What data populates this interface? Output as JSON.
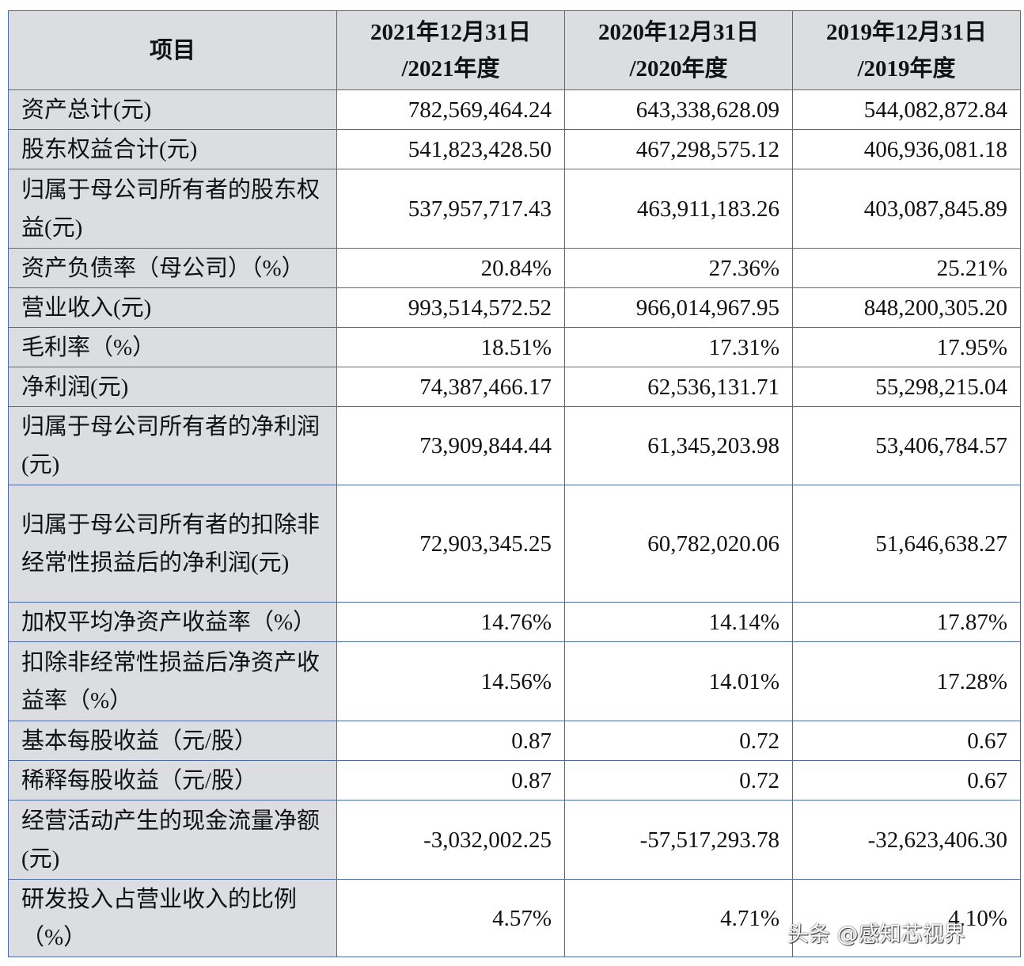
{
  "table": {
    "headers": [
      "项目",
      "2021年12月31日\n/2021年度",
      "2020年12月31日\n/2020年度",
      "2019年12月31日\n/2019年度"
    ],
    "rows": [
      {
        "label": "资产总计(元)",
        "values": [
          "782,569,464.24",
          "643,338,628.09",
          "544,082,872.84"
        ]
      },
      {
        "label": "股东权益合计(元)",
        "values": [
          "541,823,428.50",
          "467,298,575.12",
          "406,936,081.18"
        ]
      },
      {
        "label": "归属于母公司所有者的股东权益(元)",
        "values": [
          "537,957,717.43",
          "463,911,183.26",
          "403,087,845.89"
        ]
      },
      {
        "label": "资产负债率（母公司）（%）",
        "values": [
          "20.84%",
          "27.36%",
          "25.21%"
        ]
      },
      {
        "label": "营业收入(元)",
        "values": [
          "993,514,572.52",
          "966,014,967.95",
          "848,200,305.20"
        ]
      },
      {
        "label": "毛利率（%）",
        "values": [
          "18.51%",
          "17.31%",
          "17.95%"
        ]
      },
      {
        "label": "净利润(元)",
        "values": [
          "74,387,466.17",
          "62,536,131.71",
          "55,298,215.04"
        ]
      },
      {
        "label": "归属于母公司所有者的净利润(元)",
        "values": [
          "73,909,844.44",
          "61,345,203.98",
          "53,406,784.57"
        ]
      },
      {
        "label": "归属于母公司所有者的扣除非经常性损益后的净利润(元)",
        "values": [
          "72,903,345.25",
          "60,782,020.06",
          "51,646,638.27"
        ]
      },
      {
        "label": "加权平均净资产收益率（%）",
        "values": [
          "14.76%",
          "14.14%",
          "17.87%"
        ]
      },
      {
        "label": "扣除非经常性损益后净资产收益率（%）",
        "values": [
          "14.56%",
          "14.01%",
          "17.28%"
        ]
      },
      {
        "label": "基本每股收益（元/股）",
        "values": [
          "0.87",
          "0.72",
          "0.67"
        ]
      },
      {
        "label": "稀释每股收益（元/股）",
        "values": [
          "0.87",
          "0.72",
          "0.67"
        ]
      },
      {
        "label": "经营活动产生的现金流量净额(元)",
        "values": [
          "-3,032,002.25",
          "-57,517,293.78",
          "-32,623,406.30"
        ]
      },
      {
        "label": "研发投入占营业收入的比例（%）",
        "values": [
          "4.57%",
          "4.71%",
          "4.10%"
        ]
      }
    ]
  },
  "watermark": "头条 @感知芯视界"
}
